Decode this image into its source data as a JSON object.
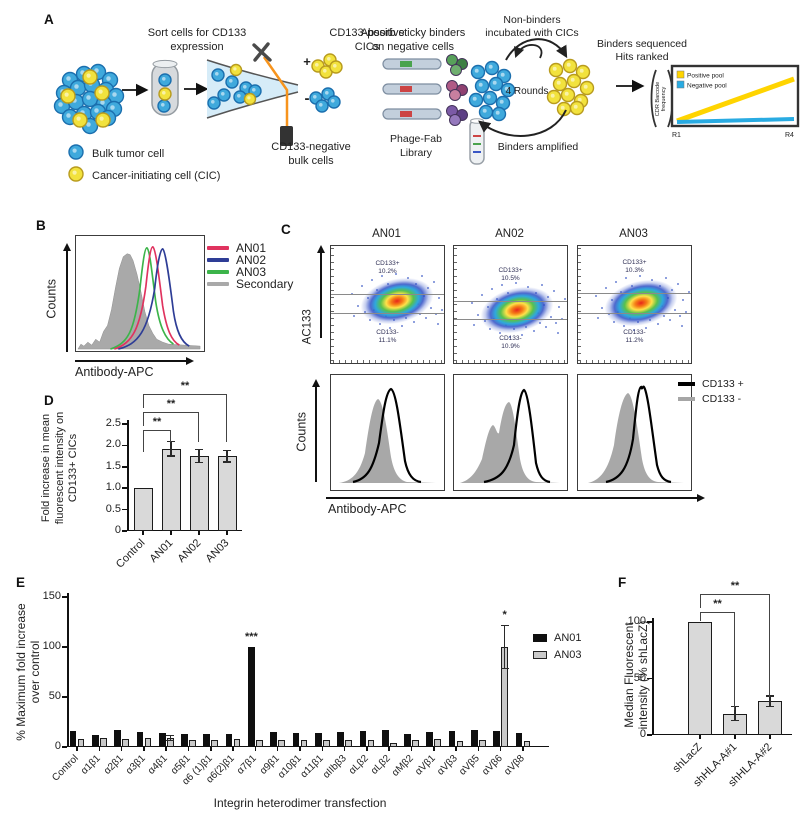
{
  "colors": {
    "bulk_cell": "#3fa9dc",
    "bulk_cell_edge": "#1b6fae",
    "cic_cell": "#f2e23d",
    "cic_cell_edge": "#b89b1e",
    "an01": "#e0335f",
    "an02": "#2e3d96",
    "an03": "#3cb44a",
    "secondary_gray": "#a9a9a9",
    "positive_pool": "#ffd400",
    "negative_pool": "#29abe2",
    "bar_fill": "#d9d9d9",
    "laser_orange": "#f7941d"
  },
  "panels": {
    "a": "A",
    "b": "B",
    "c": "C",
    "d": "D",
    "e": "E",
    "f": "F"
  },
  "panelA": {
    "sort_label": [
      "Sort cells for CD133",
      "expression"
    ],
    "pos_label": [
      "CD133-positive",
      "CICs"
    ],
    "neg_label": [
      "CD133-negative",
      "bulk cells"
    ],
    "plus_sign": "+",
    "minus_sign": "-",
    "absorb_label": [
      "Absorb sticky binders",
      "on negative cells"
    ],
    "phage_label": [
      "Phage-Fab",
      "Library"
    ],
    "nonbinders_label": [
      "Non-binders",
      "incubated with CICs"
    ],
    "rounds_label": "4 Rounds",
    "amplified_label": "Binders amplified",
    "sequenced_label": [
      "Binders sequenced",
      "Hits ranked"
    ],
    "legend": [
      {
        "label": "Bulk tumor cell"
      },
      {
        "label": "Cancer-initiating cell (CIC)"
      }
    ]
  },
  "chart_data": [
    {
      "id": "selection-enrichment-inset",
      "type": "line",
      "x_ticks": [
        "R1",
        "R4"
      ],
      "ylabel": "(CDR Barcode frequency)",
      "ylabel_lines": [
        "CDR Barcode",
        "frequency"
      ],
      "series": [
        {
          "name": "Positive pool",
          "color": "#ffd400",
          "values": [
            3,
            55
          ]
        },
        {
          "name": "Negative pool",
          "color": "#29abe2",
          "values": [
            3,
            4
          ]
        }
      ]
    },
    {
      "id": "panelB-antibody-binding-histogram",
      "type": "histogram-overlay",
      "ylabel": "Counts",
      "xlabel": "Antibody-APC",
      "legend": [
        {
          "label": "AN01",
          "color": "#e0335f"
        },
        {
          "label": "AN02",
          "color": "#2e3d96"
        },
        {
          "label": "AN03",
          "color": "#3cb44a"
        },
        {
          "label": "Secondary",
          "color": "#a9a9a9"
        }
      ]
    },
    {
      "id": "panelC-flow-cytometry",
      "type": "flow-scatter-and-histogram",
      "ylabel": "AC133",
      "counts_label": "Counts",
      "xlabel": "Antibody-APC",
      "plots": [
        {
          "title": "AN01",
          "pos_gate_label": "CD133+",
          "pos_pct": "10.2%",
          "neg_gate_label": "CD133-",
          "neg_pct": "11.1%",
          "gate_top": 0.41,
          "gate_bottom": 0.57,
          "cluster_x": 0.58,
          "cluster_y": 0.47
        },
        {
          "title": "AN02",
          "pos_gate_label": "CD133+",
          "pos_pct": "10.5%",
          "neg_gate_label": "CD133-",
          "neg_pct": "10.9%",
          "gate_top": 0.47,
          "gate_bottom": 0.62,
          "cluster_x": 0.56,
          "cluster_y": 0.55
        },
        {
          "title": "AN03",
          "pos_gate_label": "CD133+",
          "pos_pct": "10.3%",
          "neg_gate_label": "CD133-",
          "neg_pct": "11.2%",
          "gate_top": 0.4,
          "gate_bottom": 0.57,
          "cluster_x": 0.56,
          "cluster_y": 0.49
        }
      ],
      "legend": [
        {
          "label": "CD133 +",
          "color": "#000000"
        },
        {
          "label": "CD133 -",
          "color": "#a6a6a6"
        }
      ]
    },
    {
      "id": "panelD-fold-increase",
      "type": "bar",
      "ylabel": "Fold increase in mean fluorescent intensity on CD133+ CICs",
      "ylabel_lines": [
        "Fold increase in mean",
        "fluorescent intensity on",
        "CD133+ CICs"
      ],
      "categories": [
        "Control",
        "AN01",
        "AN02",
        "AN03"
      ],
      "values": [
        1.0,
        1.92,
        1.75,
        1.75
      ],
      "errors": [
        0,
        0.18,
        0.16,
        0.15
      ],
      "ylim": [
        0,
        2.5
      ],
      "ytick_values": [
        0,
        0.5,
        1.0,
        1.5,
        2.0,
        2.5
      ],
      "ytick_labels": [
        "0",
        "0.5",
        "1.0",
        "1.5",
        "2.0",
        "2.5"
      ],
      "significance": [
        {
          "from": "Control",
          "to": "AN01",
          "label": "**"
        },
        {
          "from": "Control",
          "to": "AN02",
          "label": "**"
        },
        {
          "from": "Control",
          "to": "AN03",
          "label": "**"
        }
      ]
    },
    {
      "id": "panelE-integrin-screen",
      "type": "grouped-bar",
      "ylabel": "% Maximum fold increase over control",
      "ylabel_lines": [
        "% Maximum fold increase",
        "over control"
      ],
      "xlabel": "Integrin heterodimer transfection",
      "categories": [
        "Control",
        "α1β1",
        "α2β1",
        "α3β1",
        "α4β1",
        "α5β1",
        "α6 (1)β1",
        "α6(2)β1",
        "α7β1",
        "α9β1",
        "α10β1",
        "α11β1",
        "αIIbβ3",
        "αLβ2",
        "αLβ2",
        "αMβ2",
        "αVβ1",
        "αVβ3",
        "αVβ5",
        "αVβ6",
        "αVβ8"
      ],
      "series": [
        {
          "name": "AN01",
          "color": "#0f0f0f",
          "values": [
            16,
            12,
            17,
            15,
            14,
            13,
            13,
            13,
            100,
            15,
            14,
            14,
            15,
            16,
            17,
            13,
            15,
            16,
            17,
            16,
            14
          ],
          "errors": [
            0,
            0,
            0,
            0,
            0,
            0,
            0,
            0,
            0,
            0,
            0,
            0,
            0,
            0,
            0,
            0,
            0,
            0,
            0,
            0,
            0
          ]
        },
        {
          "name": "AN03",
          "color": "#c9c9c9",
          "values": [
            8,
            9,
            8,
            9,
            9,
            7,
            7,
            8,
            7,
            7,
            7,
            7,
            7,
            7,
            4,
            7,
            8,
            6,
            7,
            100,
            6
          ],
          "errors": [
            0,
            0,
            0,
            0,
            3,
            0,
            0,
            0,
            0,
            0,
            0,
            0,
            0,
            0,
            0,
            0,
            0,
            0,
            0,
            22,
            0
          ]
        }
      ],
      "ylim": [
        0,
        150
      ],
      "ytick_values": [
        0,
        50,
        100,
        150
      ],
      "ytick_labels": [
        "0",
        "50",
        "100",
        "150"
      ],
      "annotations": [
        {
          "category": "α7β1",
          "category_index": 8,
          "series": "AN01",
          "label": "***"
        },
        {
          "category": "αVβ6",
          "category_index": 19,
          "series": "AN03",
          "label": "*"
        }
      ]
    },
    {
      "id": "panelF-hla-knockdown",
      "type": "bar",
      "ylabel": "Median Fluorescent intensity (% shLacZ)",
      "ylabel_lines": [
        "Median Fluorescent",
        "intensity (% shLacZ)"
      ],
      "categories": [
        "shLacZ",
        "shHLA-A#1",
        "shHLA-A#2"
      ],
      "values": [
        100,
        19,
        30
      ],
      "errors": [
        0,
        7,
        5
      ],
      "ylim": [
        0,
        110
      ],
      "ytick_values": [
        0,
        50,
        100
      ],
      "ytick_labels": [
        "0",
        "50",
        "100"
      ],
      "significance": [
        {
          "from": "shLacZ",
          "to": "shHLA-A#1",
          "label": "**"
        },
        {
          "from": "shLacZ",
          "to": "shHLA-A#2",
          "label": "**"
        }
      ]
    }
  ]
}
